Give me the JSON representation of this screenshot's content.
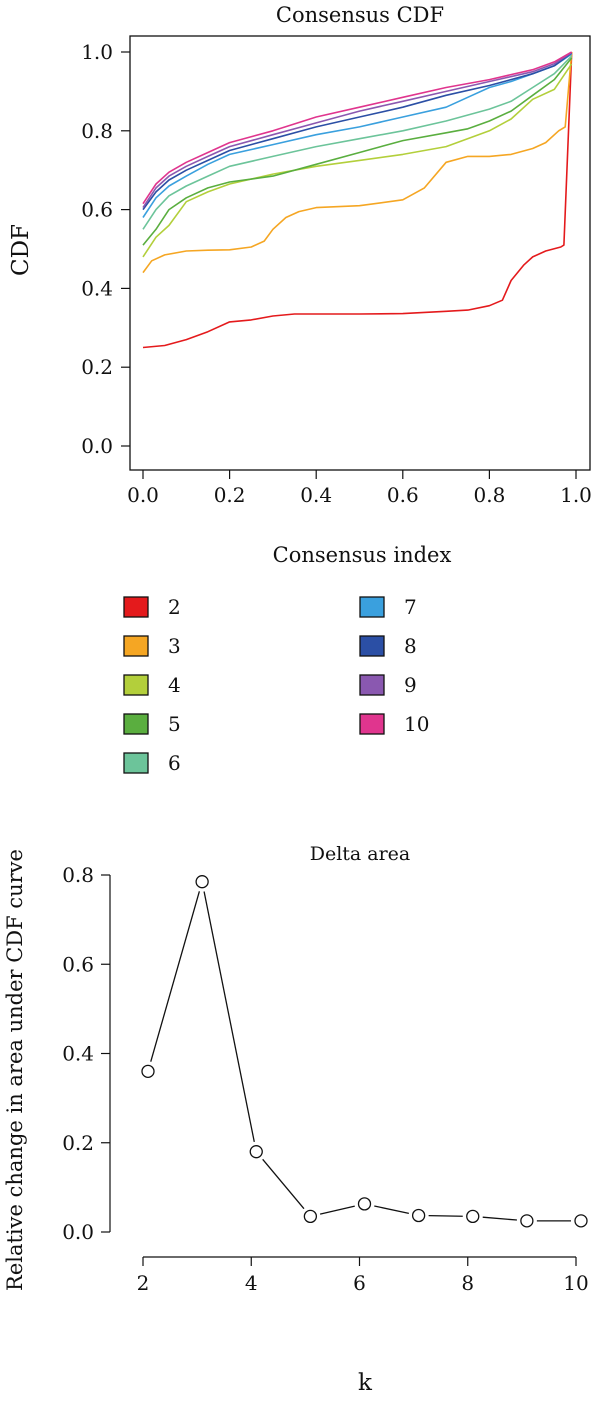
{
  "chart_data": [
    {
      "type": "line",
      "title": "Consensus CDF",
      "xlabel": "",
      "ylabel": "CDF",
      "xlim": [
        0,
        1
      ],
      "ylim": [
        0,
        1
      ],
      "x_ticks": [
        "0.0",
        "0.2",
        "0.4",
        "0.6",
        "0.8",
        "1.0"
      ],
      "y_ticks": [
        "0.0",
        "0.2",
        "0.4",
        "0.6",
        "0.8",
        "1.0"
      ],
      "legend_title": "Consensus index",
      "legend_placement": "bottom",
      "series": [
        {
          "name": "2",
          "color": "#e41a1c",
          "points": [
            [
              0,
              0.25
            ],
            [
              0.05,
              0.255
            ],
            [
              0.1,
              0.27
            ],
            [
              0.15,
              0.29
            ],
            [
              0.2,
              0.315
            ],
            [
              0.25,
              0.32
            ],
            [
              0.3,
              0.33
            ],
            [
              0.35,
              0.335
            ],
            [
              0.4,
              0.335
            ],
            [
              0.5,
              0.335
            ],
            [
              0.6,
              0.336
            ],
            [
              0.7,
              0.342
            ],
            [
              0.75,
              0.345
            ],
            [
              0.8,
              0.356
            ],
            [
              0.83,
              0.37
            ],
            [
              0.85,
              0.42
            ],
            [
              0.88,
              0.46
            ],
            [
              0.9,
              0.48
            ],
            [
              0.93,
              0.495
            ],
            [
              0.965,
              0.505
            ],
            [
              0.972,
              0.51
            ],
            [
              0.99,
              1.0
            ]
          ]
        },
        {
          "name": "3",
          "color": "#f5a623",
          "points": [
            [
              0,
              0.44
            ],
            [
              0.02,
              0.47
            ],
            [
              0.05,
              0.485
            ],
            [
              0.1,
              0.495
            ],
            [
              0.15,
              0.497
            ],
            [
              0.2,
              0.498
            ],
            [
              0.25,
              0.505
            ],
            [
              0.28,
              0.52
            ],
            [
              0.3,
              0.55
            ],
            [
              0.33,
              0.58
            ],
            [
              0.36,
              0.595
            ],
            [
              0.4,
              0.605
            ],
            [
              0.5,
              0.61
            ],
            [
              0.6,
              0.625
            ],
            [
              0.65,
              0.655
            ],
            [
              0.7,
              0.72
            ],
            [
              0.75,
              0.735
            ],
            [
              0.8,
              0.735
            ],
            [
              0.85,
              0.74
            ],
            [
              0.9,
              0.755
            ],
            [
              0.93,
              0.77
            ],
            [
              0.96,
              0.8
            ],
            [
              0.975,
              0.81
            ],
            [
              0.99,
              1.0
            ]
          ]
        },
        {
          "name": "4",
          "color": "#b3cf3b",
          "points": [
            [
              0,
              0.48
            ],
            [
              0.03,
              0.53
            ],
            [
              0.06,
              0.56
            ],
            [
              0.1,
              0.62
            ],
            [
              0.15,
              0.645
            ],
            [
              0.2,
              0.665
            ],
            [
              0.3,
              0.69
            ],
            [
              0.4,
              0.71
            ],
            [
              0.5,
              0.725
            ],
            [
              0.6,
              0.74
            ],
            [
              0.7,
              0.76
            ],
            [
              0.8,
              0.8
            ],
            [
              0.85,
              0.83
            ],
            [
              0.9,
              0.88
            ],
            [
              0.95,
              0.905
            ],
            [
              0.99,
              0.97
            ]
          ]
        },
        {
          "name": "5",
          "color": "#5aae3f",
          "points": [
            [
              0,
              0.51
            ],
            [
              0.03,
              0.55
            ],
            [
              0.06,
              0.6
            ],
            [
              0.1,
              0.63
            ],
            [
              0.15,
              0.655
            ],
            [
              0.2,
              0.67
            ],
            [
              0.3,
              0.685
            ],
            [
              0.4,
              0.715
            ],
            [
              0.5,
              0.745
            ],
            [
              0.6,
              0.775
            ],
            [
              0.7,
              0.795
            ],
            [
              0.75,
              0.805
            ],
            [
              0.8,
              0.825
            ],
            [
              0.85,
              0.85
            ],
            [
              0.9,
              0.89
            ],
            [
              0.95,
              0.93
            ],
            [
              0.99,
              0.985
            ]
          ]
        },
        {
          "name": "6",
          "color": "#6cc49a",
          "points": [
            [
              0,
              0.55
            ],
            [
              0.03,
              0.6
            ],
            [
              0.06,
              0.635
            ],
            [
              0.1,
              0.66
            ],
            [
              0.15,
              0.685
            ],
            [
              0.2,
              0.71
            ],
            [
              0.3,
              0.735
            ],
            [
              0.4,
              0.76
            ],
            [
              0.5,
              0.78
            ],
            [
              0.6,
              0.8
            ],
            [
              0.7,
              0.825
            ],
            [
              0.8,
              0.855
            ],
            [
              0.85,
              0.875
            ],
            [
              0.9,
              0.91
            ],
            [
              0.95,
              0.945
            ],
            [
              0.99,
              0.99
            ]
          ]
        },
        {
          "name": "7",
          "color": "#3aa0de",
          "points": [
            [
              0,
              0.58
            ],
            [
              0.03,
              0.63
            ],
            [
              0.06,
              0.66
            ],
            [
              0.1,
              0.685
            ],
            [
              0.15,
              0.715
            ],
            [
              0.2,
              0.74
            ],
            [
              0.3,
              0.765
            ],
            [
              0.4,
              0.79
            ],
            [
              0.5,
              0.81
            ],
            [
              0.6,
              0.835
            ],
            [
              0.7,
              0.86
            ],
            [
              0.75,
              0.885
            ],
            [
              0.8,
              0.91
            ],
            [
              0.85,
              0.925
            ],
            [
              0.9,
              0.945
            ],
            [
              0.95,
              0.965
            ],
            [
              0.99,
              0.995
            ]
          ]
        },
        {
          "name": "8",
          "color": "#2b4fa5",
          "points": [
            [
              0,
              0.6
            ],
            [
              0.03,
              0.645
            ],
            [
              0.06,
              0.675
            ],
            [
              0.1,
              0.7
            ],
            [
              0.15,
              0.725
            ],
            [
              0.2,
              0.75
            ],
            [
              0.3,
              0.78
            ],
            [
              0.4,
              0.81
            ],
            [
              0.5,
              0.835
            ],
            [
              0.6,
              0.86
            ],
            [
              0.7,
              0.89
            ],
            [
              0.8,
              0.915
            ],
            [
              0.9,
              0.945
            ],
            [
              0.95,
              0.965
            ],
            [
              0.99,
              0.998
            ]
          ]
        },
        {
          "name": "9",
          "color": "#8a58b0",
          "points": [
            [
              0,
              0.605
            ],
            [
              0.03,
              0.655
            ],
            [
              0.06,
              0.685
            ],
            [
              0.1,
              0.71
            ],
            [
              0.15,
              0.735
            ],
            [
              0.2,
              0.76
            ],
            [
              0.3,
              0.79
            ],
            [
              0.4,
              0.82
            ],
            [
              0.5,
              0.85
            ],
            [
              0.6,
              0.875
            ],
            [
              0.7,
              0.9
            ],
            [
              0.8,
              0.925
            ],
            [
              0.9,
              0.95
            ],
            [
              0.95,
              0.97
            ],
            [
              0.99,
              0.999
            ]
          ]
        },
        {
          "name": "10",
          "color": "#e0358e",
          "points": [
            [
              0,
              0.615
            ],
            [
              0.03,
              0.665
            ],
            [
              0.06,
              0.695
            ],
            [
              0.1,
              0.72
            ],
            [
              0.15,
              0.745
            ],
            [
              0.2,
              0.77
            ],
            [
              0.3,
              0.8
            ],
            [
              0.4,
              0.835
            ],
            [
              0.5,
              0.86
            ],
            [
              0.6,
              0.885
            ],
            [
              0.7,
              0.91
            ],
            [
              0.8,
              0.93
            ],
            [
              0.9,
              0.955
            ],
            [
              0.95,
              0.975
            ],
            [
              0.99,
              1.0
            ]
          ]
        }
      ]
    },
    {
      "type": "line",
      "title": "Delta area",
      "xlabel": "k",
      "ylabel": "Relative change in area under CDF curve",
      "xlim": [
        2,
        10
      ],
      "ylim": [
        0,
        0.8
      ],
      "x_ticks": [
        "2",
        "4",
        "6",
        "8",
        "10"
      ],
      "y_ticks": [
        "0.0",
        "0.2",
        "0.4",
        "0.6",
        "0.8"
      ],
      "x": [
        2,
        3,
        4,
        5,
        6,
        7,
        8,
        9,
        10
      ],
      "values": [
        0.36,
        0.785,
        0.18,
        0.035,
        0.063,
        0.037,
        0.035,
        0.025,
        0.025
      ]
    }
  ]
}
